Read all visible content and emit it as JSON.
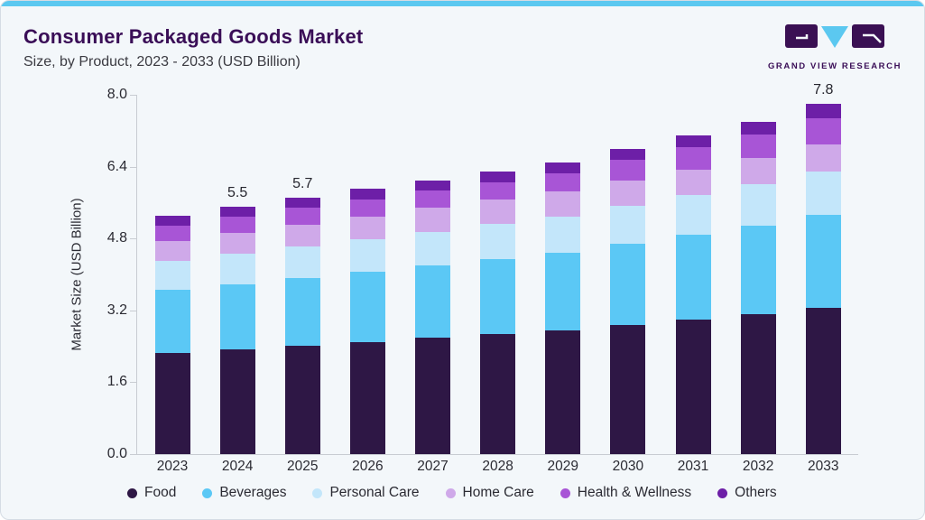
{
  "header": {
    "title": "Consumer Packaged Goods Market",
    "subtitle": "Size, by Product, 2023 - 2033 (USD Billion)",
    "logo_text": "GRAND VIEW RESEARCH"
  },
  "colors": {
    "top_stripe": "#5BC8F0",
    "title_text": "#3A0E57",
    "axis": "#C8CCD2",
    "tick_text": "#2B2B33",
    "logo_purple": "#3A1053",
    "logo_blue": "#5BC8F0"
  },
  "chart_data": {
    "type": "bar",
    "subtype": "stacked-vertical",
    "title": "Consumer Packaged Goods Market Size, by Product, 2023 - 2033 (USD Billion)",
    "ylabel": "Market Size (USD Billion)",
    "xlabel": "",
    "ylim": [
      0,
      8.0
    ],
    "yticks": [
      "0.0",
      "1.6",
      "3.2",
      "4.8",
      "6.4",
      "8.0"
    ],
    "ytick_values": [
      0,
      1.6,
      3.2,
      4.8,
      6.4,
      8.0
    ],
    "grid": false,
    "legend_position": "bottom",
    "categories": [
      "2023",
      "2024",
      "2025",
      "2026",
      "2027",
      "2028",
      "2029",
      "2030",
      "2031",
      "2032",
      "2033"
    ],
    "series": [
      {
        "name": "Food",
        "color": "#2E1745",
        "values": [
          2.25,
          2.33,
          2.42,
          2.5,
          2.6,
          2.68,
          2.76,
          2.88,
          3.0,
          3.12,
          3.26
        ]
      },
      {
        "name": "Beverages",
        "color": "#5BC8F5",
        "values": [
          1.4,
          1.45,
          1.5,
          1.55,
          1.6,
          1.66,
          1.72,
          1.8,
          1.88,
          1.97,
          2.07
        ]
      },
      {
        "name": "Personal Care",
        "color": "#C3E6FA",
        "values": [
          0.65,
          0.68,
          0.7,
          0.73,
          0.75,
          0.78,
          0.81,
          0.85,
          0.88,
          0.91,
          0.96
        ]
      },
      {
        "name": "Home Care",
        "color": "#CFA9E9",
        "values": [
          0.44,
          0.46,
          0.48,
          0.5,
          0.53,
          0.54,
          0.55,
          0.57,
          0.58,
          0.6,
          0.61
        ]
      },
      {
        "name": "Health & Wellness",
        "color": "#A855D6",
        "values": [
          0.34,
          0.36,
          0.38,
          0.39,
          0.38,
          0.4,
          0.42,
          0.45,
          0.49,
          0.52,
          0.58
        ]
      },
      {
        "name": "Others",
        "color": "#6D1FA7",
        "values": [
          0.22,
          0.22,
          0.22,
          0.23,
          0.24,
          0.24,
          0.24,
          0.25,
          0.27,
          0.28,
          0.32
        ]
      }
    ],
    "totals": [
      5.3,
      5.5,
      5.7,
      5.9,
      6.1,
      6.3,
      6.5,
      6.8,
      7.1,
      7.4,
      7.8
    ],
    "bar_value_labels": {
      "2024": "5.5",
      "2025": "5.7",
      "2033": "7.8"
    }
  }
}
